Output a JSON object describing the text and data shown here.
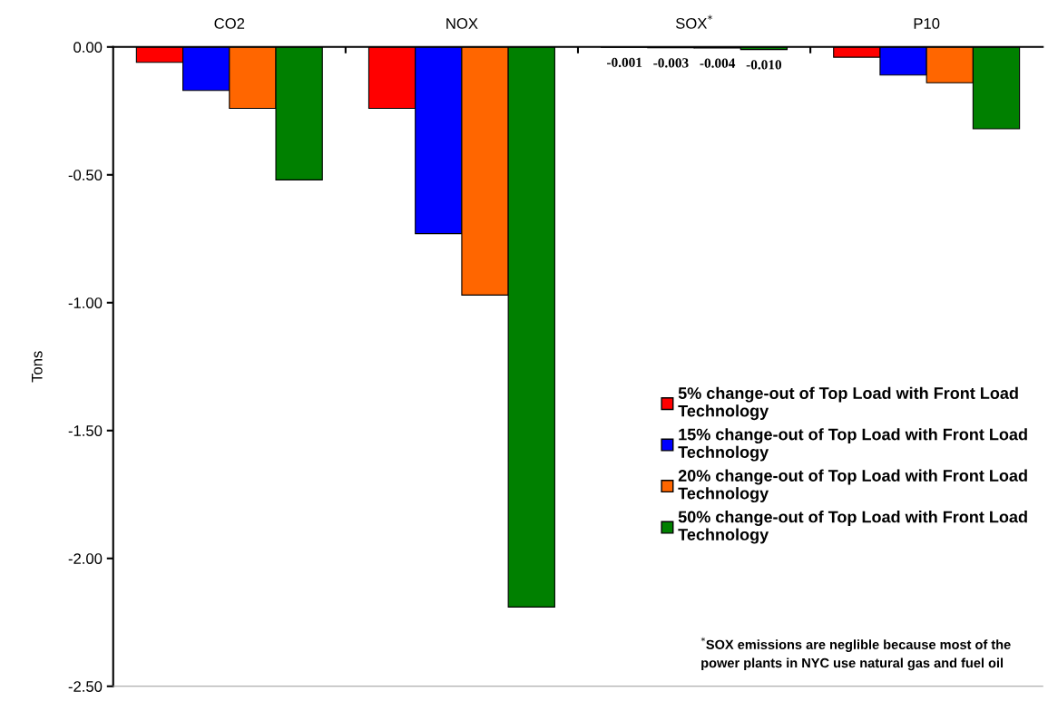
{
  "chart_data": {
    "type": "bar",
    "categories": [
      "CO2",
      "NOX",
      "SOX$^{*}$",
      "P10"
    ],
    "ylabel": "Tons",
    "ylim": [
      -2.5,
      0.0
    ],
    "yticks": [
      {
        "value": 0,
        "label": "0.00"
      },
      {
        "value": -0.5,
        "label": "-0.50"
      },
      {
        "value": -1.0,
        "label": "-1.00"
      },
      {
        "value": -1.5,
        "label": "-1.50"
      },
      {
        "value": -2.0,
        "label": "-2.00"
      },
      {
        "value": -2.5,
        "label": "-2.50"
      }
    ],
    "series": [
      {
        "name": "5% change-out of Top Load with Front Load Technology",
        "color": "#ff0000",
        "values": [
          -0.06,
          -0.24,
          -0.001,
          -0.04
        ],
        "value_labels": [
          null,
          null,
          "-0.001",
          null
        ]
      },
      {
        "name": "15% change-out of Top Load with Front Load Technology",
        "color": "#0000ff",
        "values": [
          -0.17,
          -0.73,
          -0.003,
          -0.11
        ],
        "value_labels": [
          null,
          null,
          "-0.003",
          null
        ]
      },
      {
        "name": "20% change-out of Top Load with Front Load Technology",
        "color": "#ff6600",
        "values": [
          -0.24,
          -0.97,
          -0.004,
          -0.14
        ],
        "value_labels": [
          null,
          null,
          "-0.004",
          null
        ]
      },
      {
        "name": "50% change-out of Top Load with Front Load Technology",
        "color": "#008000",
        "values": [
          -0.52,
          -2.19,
          -0.01,
          -0.32
        ],
        "value_labels": [
          null,
          null,
          "-0.010",
          null
        ]
      }
    ],
    "legend": "right",
    "grid": false,
    "annotations": [
      "$^{*}$SOX emissions are neglible because most of the power plants in NYC use natural gas and fuel oil"
    ]
  }
}
